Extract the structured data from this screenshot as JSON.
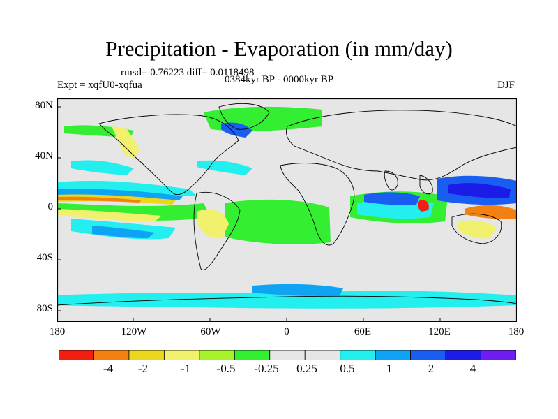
{
  "title": "Precipitation - Evaporation (in mm/day)",
  "stats_line": "rmsd= 0.76223 diff= 0.0118498",
  "period_line": "0384kyr BP - 0000kyr BP",
  "experiment_line": "Expt = xqfU0-xqfua",
  "season": "DJF",
  "lat_labels": [
    "80N",
    "40N",
    "0",
    "40S",
    "80S"
  ],
  "lon_labels": [
    "180",
    "120W",
    "60W",
    "0",
    "60E",
    "120E",
    "180"
  ],
  "colorbar": {
    "colors": [
      "#f41e10",
      "#f38112",
      "#ead61c",
      "#f1f16e",
      "#a8f22c",
      "#33ee31",
      "#e6e6e6",
      "#e6e6e6",
      "#23efef",
      "#0fa3f4",
      "#1a5ef1",
      "#1c1ce9",
      "#6e1cef"
    ],
    "labels": [
      "-4",
      "-2",
      "-1",
      "-0.5",
      "-0.25",
      "0.25",
      "0.5",
      "1",
      "2",
      "4"
    ]
  },
  "map_colors": {
    "background": "#e6e6e6",
    "coast": "#000000"
  }
}
